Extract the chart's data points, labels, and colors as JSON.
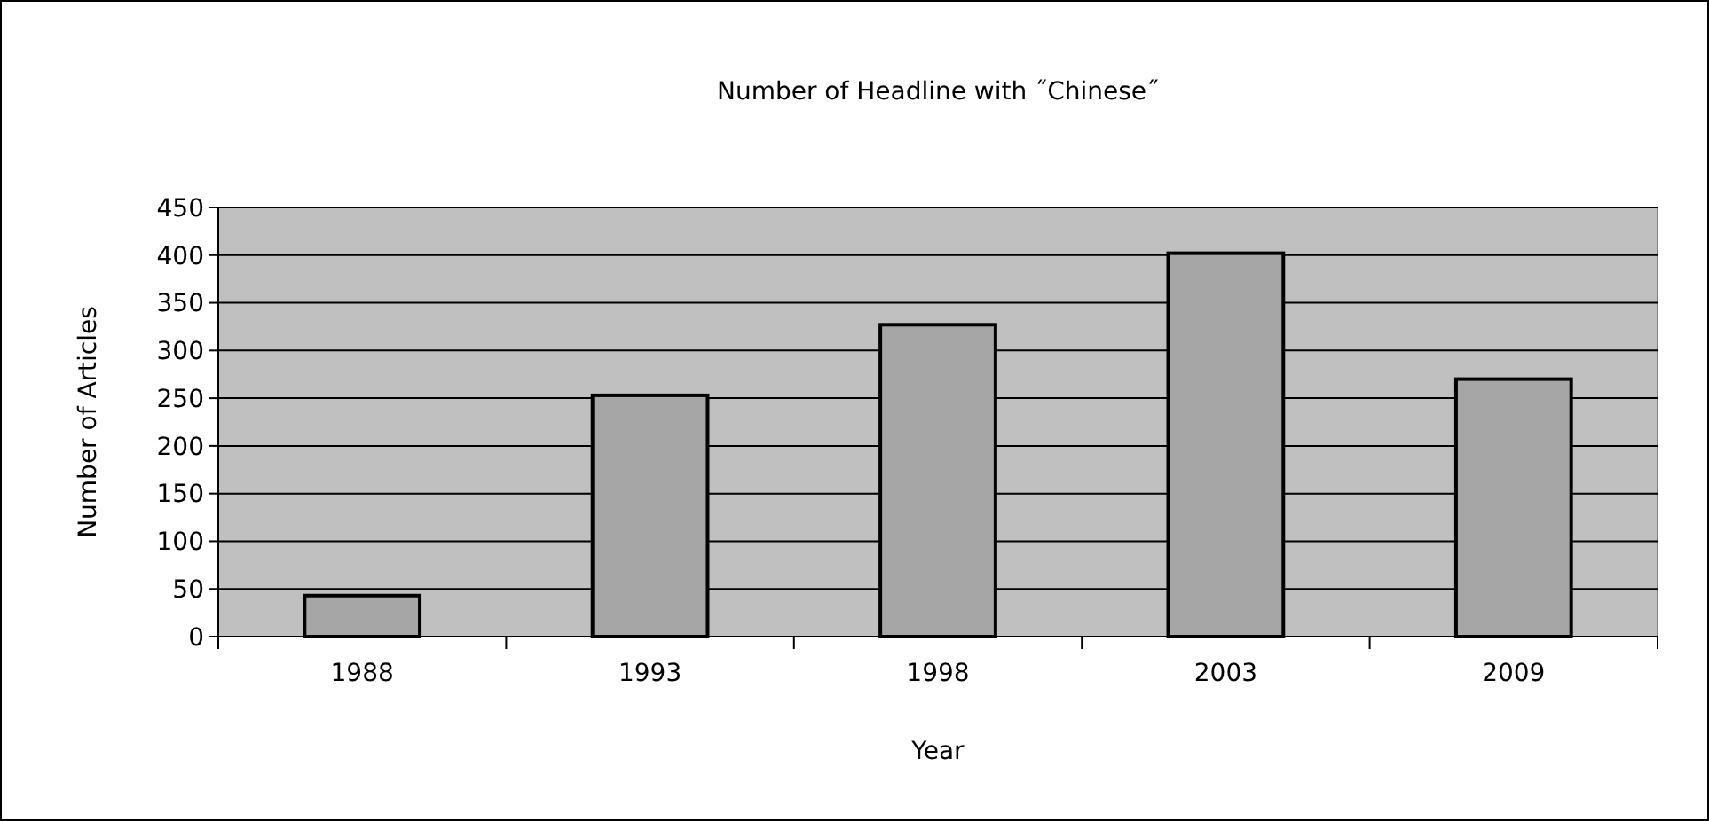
{
  "chart_data": {
    "type": "bar",
    "title": "Number of Headline with ˝Chinese˝",
    "xlabel": "Year",
    "ylabel": "Number of Articles",
    "categories": [
      "1988",
      "1993",
      "1998",
      "2003",
      "2009"
    ],
    "values": [
      43,
      253,
      327,
      402,
      270
    ],
    "color": "#a6a6a6",
    "ylim": [
      0,
      450
    ],
    "yticks": [
      0,
      50,
      100,
      150,
      200,
      250,
      300,
      350,
      400,
      450
    ],
    "grid": "y"
  }
}
